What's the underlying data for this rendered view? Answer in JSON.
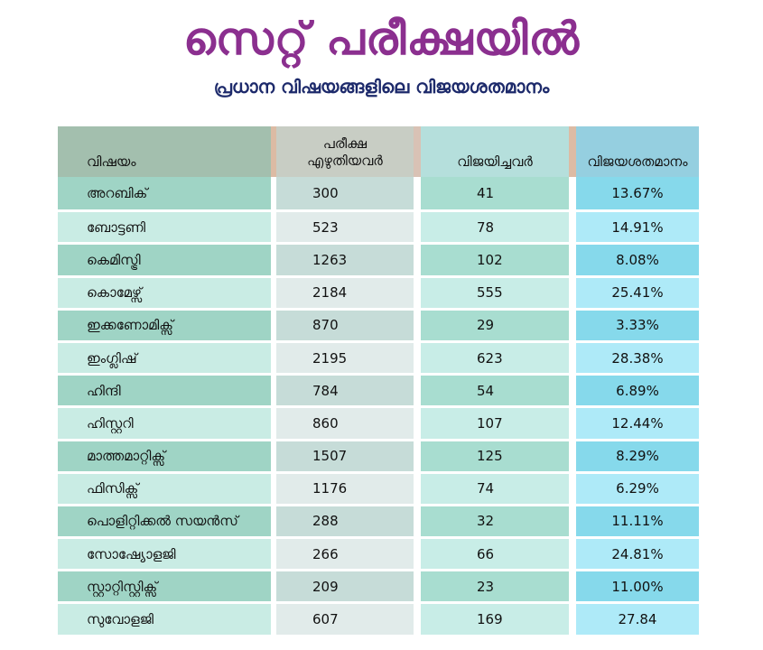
{
  "title": "സെറ്റ് പരീക്ഷയിൽ",
  "subtitle": "പ്രധാന വിഷയങ്ങളിലെ വിജയശതമാനം",
  "headers": {
    "subject": "വിഷയം",
    "appeared_line1": "പരീക്ഷ",
    "appeared_line2": "എഴുതിയവർ",
    "passed": "വിജയിച്ചവർ",
    "percent": "വിജയശതമാനം"
  },
  "rows": [
    {
      "subject": "അറബിക്",
      "appeared": "300",
      "passed": "41",
      "percent": "13.67%"
    },
    {
      "subject": "ബോട്ടണി",
      "appeared": "523",
      "passed": "78",
      "percent": "14.91%"
    },
    {
      "subject": "കെമിസ്ട്രി",
      "appeared": "1263",
      "passed": "102",
      "percent": "8.08%"
    },
    {
      "subject": "കൊമേഴ്സ്",
      "appeared": "2184",
      "passed": "555",
      "percent": "25.41%"
    },
    {
      "subject": "ഇക്കണോമിക്സ്",
      "appeared": "870",
      "passed": "29",
      "percent": "3.33%"
    },
    {
      "subject": "ഇംഗ്ലിഷ്",
      "appeared": "2195",
      "passed": "623",
      "percent": "28.38%"
    },
    {
      "subject": "ഹിന്ദി",
      "appeared": "784",
      "passed": "54",
      "percent": "6.89%"
    },
    {
      "subject": "ഹിസ്റ്ററി",
      "appeared": "860",
      "passed": "107",
      "percent": "12.44%"
    },
    {
      "subject": "മാത്തമാറ്റിക്സ്",
      "appeared": "1507",
      "passed": "125",
      "percent": "8.29%"
    },
    {
      "subject": "ഫിസിക്സ്",
      "appeared": "1176",
      "passed": "74",
      "percent": "6.29%"
    },
    {
      "subject": "പൊളിറ്റിക്കൽ സയൻസ്",
      "appeared": "288",
      "passed": "32",
      "percent": "11.11%"
    },
    {
      "subject": "സോഷ്യോളജി",
      "appeared": "266",
      "passed": "66",
      "percent": "24.81%"
    },
    {
      "subject": "സ്റ്റാറ്റിസ്റ്റിക്സ്",
      "appeared": "209",
      "passed": "23",
      "percent": "11.00%"
    },
    {
      "subject": "സുവോളജി",
      "appeared": "607",
      "passed": "169",
      "percent": "27.84"
    }
  ]
}
